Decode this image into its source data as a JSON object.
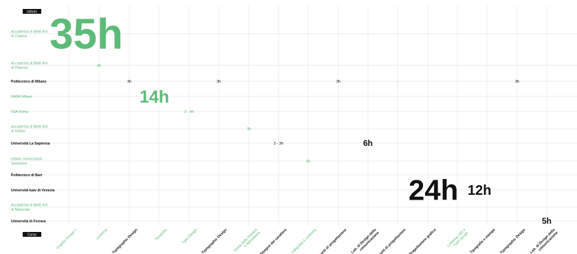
{
  "axis_tags": {
    "rows": "Istituto",
    "cols": "Corso"
  },
  "colors": {
    "green": "#5dbb78",
    "black": "#111111"
  },
  "chart_data": {
    "type": "heatmap",
    "title": "",
    "rows": [
      {
        "label": [
          "Accademia di Belle Arti",
          "di Catania"
        ],
        "color": "green"
      },
      {
        "label": [
          "Accademia di Belle Arti",
          "di Palermo"
        ],
        "color": "green"
      },
      {
        "label": [
          "Politecnico di Milano"
        ],
        "color": "black"
      },
      {
        "label": [
          "NABA Milano"
        ],
        "color": "green"
      },
      {
        "label": [
          "ISIA Roma"
        ],
        "color": "green"
      },
      {
        "label": [
          "Accademia di Belle Arti",
          "di Urbino"
        ],
        "color": "green"
      },
      {
        "label": [
          "Università La Sapienza"
        ],
        "color": "black"
      },
      {
        "label": [
          "Istituto Universitario",
          "Saveriano"
        ],
        "color": "green"
      },
      {
        "label": [
          "Politecnico di Bari"
        ],
        "color": "black"
      },
      {
        "label": [
          "Università Iuav di Venezia"
        ],
        "color": "black"
      },
      {
        "label": [
          "Accademia di Belle Arti",
          "di Macerata"
        ],
        "color": "green"
      },
      {
        "label": [
          "Università di Ferrara"
        ],
        "color": "black"
      }
    ],
    "columns": [
      {
        "label": [
          "Graphic Design 1"
        ],
        "color": "green"
      },
      {
        "label": [
          "Lettering"
        ],
        "color": "green"
      },
      {
        "label": [
          "Typographic Design"
        ],
        "color": "black"
      },
      {
        "label": [
          "Tipografia"
        ],
        "color": "green"
      },
      {
        "label": [
          "Type Design"
        ],
        "color": "green"
      },
      {
        "label": [
          "Typographic Design"
        ],
        "color": "black"
      },
      {
        "label": [
          "Storia della Stampa",
          "e dell'editoria"
        ],
        "color": "green"
      },
      {
        "label": [
          "Disegno dei carattere"
        ],
        "color": "black"
      },
      {
        "label": [
          "Calligrafia & Lettering"
        ],
        "color": "green"
      },
      {
        "label": [
          "Elementi di progettazione"
        ],
        "color": "black"
      },
      {
        "label": [
          "Lab. di Design della",
          "comunicazione"
        ],
        "color": "black"
      },
      {
        "label": [
          "Elementi di progettazione"
        ],
        "color": "black"
      },
      {
        "label": [
          "Progettazione grafica"
        ],
        "color": "black"
      },
      {
        "label": [
          "Lettering 1&2 e",
          "Type Design"
        ],
        "color": "green"
      },
      {
        "label": [
          "Tipografia e stampa"
        ],
        "color": "black"
      },
      {
        "label": [
          "Typographic Design"
        ],
        "color": "black"
      },
      {
        "label": [
          "Lab. di Design della",
          "comunicazione"
        ],
        "color": "black"
      }
    ],
    "cells": [
      {
        "row": 0,
        "col": 0,
        "text": "35h",
        "hours": 35,
        "color": "green"
      },
      {
        "row": 1,
        "col": 1,
        "text": "4h",
        "hours": 4,
        "color": "green"
      },
      {
        "row": 2,
        "col": 2,
        "text": "3h",
        "hours": 3,
        "color": "black"
      },
      {
        "row": 2,
        "col": 5,
        "text": "3h",
        "hours": 3,
        "color": "black"
      },
      {
        "row": 2,
        "col": 9,
        "text": "3h",
        "hours": 3,
        "color": "black"
      },
      {
        "row": 2,
        "col": 11,
        "text": "-",
        "hours": null,
        "color": "black"
      },
      {
        "row": 2,
        "col": 15,
        "text": "3h",
        "hours": 3,
        "color": "black"
      },
      {
        "row": 3,
        "col": 3,
        "text": "14h",
        "hours": 14,
        "color": "green"
      },
      {
        "row": 4,
        "col": 4,
        "text": "3 - 4h",
        "hours": 3.5,
        "color": "green"
      },
      {
        "row": 5,
        "col": 6,
        "text": "3h",
        "hours": 3,
        "color": "green"
      },
      {
        "row": 6,
        "col": 7,
        "text": "2 - 3h",
        "hours": 2.5,
        "color": "black"
      },
      {
        "row": 6,
        "col": 10,
        "text": "6h",
        "hours": 6,
        "color": "black"
      },
      {
        "row": 7,
        "col": 8,
        "text": "3h",
        "hours": 3,
        "color": "green"
      },
      {
        "row": 9,
        "col": 12,
        "text": "24h",
        "hours": 24,
        "color": "black"
      },
      {
        "row": 9,
        "col": 14,
        "text": "12h",
        "hours": 12,
        "color": "black"
      },
      {
        "row": 11,
        "col": 16,
        "text": "5h",
        "hours": 5,
        "color": "black"
      }
    ]
  }
}
